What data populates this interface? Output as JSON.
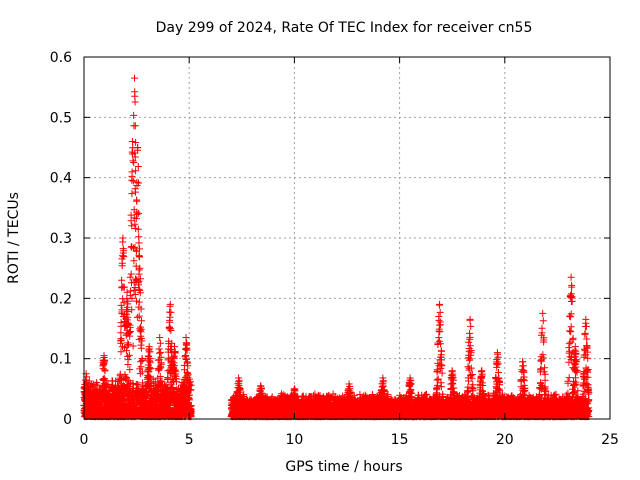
{
  "chart_data": {
    "type": "scatter",
    "title": "Day 299 of 2024, Rate Of TEC Index for receiver cn55",
    "xlabel": "GPS time / hours",
    "ylabel": "ROTI / TECUs",
    "xlim": [
      0,
      25
    ],
    "ylim": [
      0,
      0.6
    ],
    "xticks": [
      0,
      5,
      10,
      15,
      20,
      25
    ],
    "xtick_labels": [
      "0",
      "5",
      "10",
      "15",
      "20",
      "25"
    ],
    "yticks": [
      0,
      0.1,
      0.2,
      0.3,
      0.4,
      0.5,
      0.6
    ],
    "ytick_labels": [
      "0",
      "0.1",
      "0.2",
      "0.3",
      "0.4",
      "0.5",
      "0.6"
    ],
    "grid": true,
    "marker": "+",
    "marker_color": "#ff0000",
    "series": [
      {
        "name": "ROTI",
        "segments": [
          {
            "x_start": 0.0,
            "x_end": 5.1,
            "baseline": 0.03,
            "spread": 0.05
          },
          {
            "x_start": 7.0,
            "x_end": 24.0,
            "baseline": 0.025,
            "spread": 0.03
          }
        ],
        "peaks": [
          {
            "x": 0.1,
            "max": 0.075
          },
          {
            "x": 0.95,
            "max": 0.105
          },
          {
            "x": 1.85,
            "max": 0.3
          },
          {
            "x": 2.05,
            "max": 0.21
          },
          {
            "x": 2.3,
            "max": 0.46
          },
          {
            "x": 2.4,
            "max": 0.565
          },
          {
            "x": 2.55,
            "max": 0.45
          },
          {
            "x": 2.65,
            "max": 0.25
          },
          {
            "x": 3.1,
            "max": 0.12
          },
          {
            "x": 3.6,
            "max": 0.135
          },
          {
            "x": 4.1,
            "max": 0.19
          },
          {
            "x": 4.3,
            "max": 0.12
          },
          {
            "x": 4.85,
            "max": 0.135
          },
          {
            "x": 7.35,
            "max": 0.068
          },
          {
            "x": 8.4,
            "max": 0.055
          },
          {
            "x": 10.0,
            "max": 0.05
          },
          {
            "x": 12.6,
            "max": 0.058
          },
          {
            "x": 14.2,
            "max": 0.068
          },
          {
            "x": 15.5,
            "max": 0.068
          },
          {
            "x": 16.9,
            "max": 0.19
          },
          {
            "x": 17.5,
            "max": 0.08
          },
          {
            "x": 18.35,
            "max": 0.165
          },
          {
            "x": 18.9,
            "max": 0.08
          },
          {
            "x": 19.65,
            "max": 0.11
          },
          {
            "x": 20.85,
            "max": 0.095
          },
          {
            "x": 21.8,
            "max": 0.175
          },
          {
            "x": 23.15,
            "max": 0.235
          },
          {
            "x": 23.35,
            "max": 0.12
          },
          {
            "x": 23.85,
            "max": 0.165
          }
        ]
      }
    ]
  }
}
